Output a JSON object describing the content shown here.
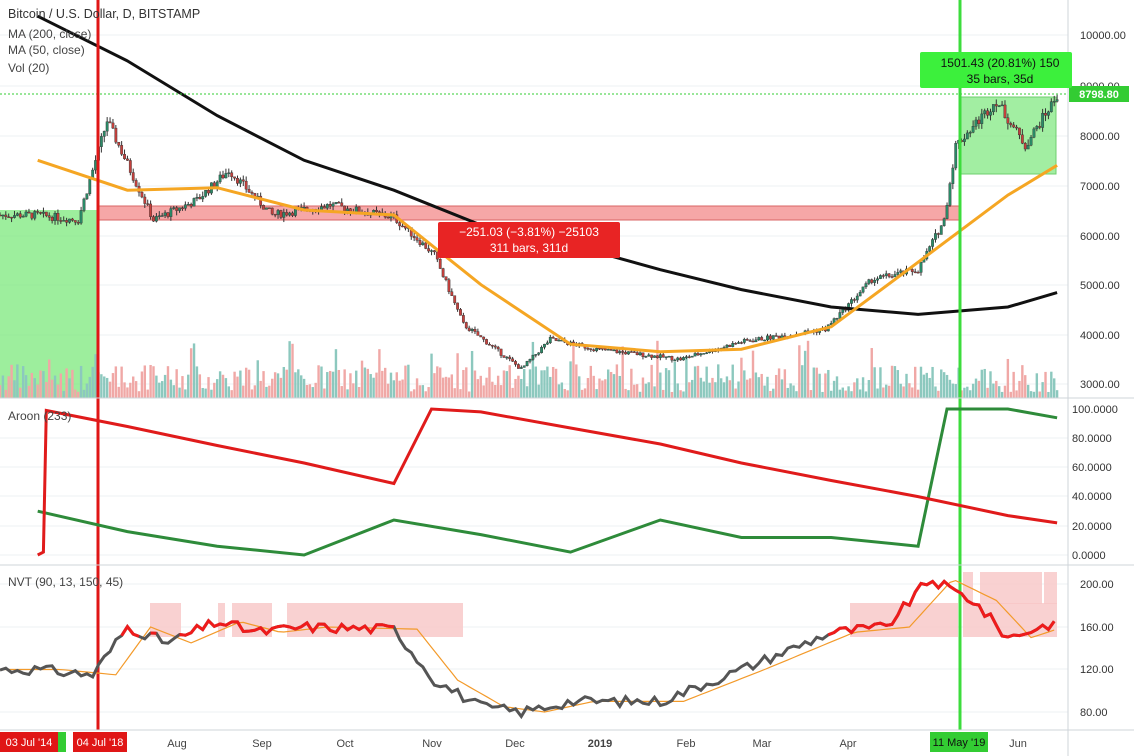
{
  "header": {
    "title": "Bitcoin / U.S. Dollar, D, BITSTAMP",
    "indicators": [
      "MA (200, close)",
      "MA (50, close)",
      "Vol (20)"
    ]
  },
  "colors": {
    "up": "#2a8a67",
    "down": "#c4403c",
    "ma200": "#111111",
    "ma50": "#f5a623",
    "vol_up": "#8cc8be",
    "vol_down": "#f0a8a6",
    "aroon_up": "#2e8b3a",
    "aroon_down": "#e01b1b",
    "nvt_line": "#555555",
    "nvt_high": "#ef1b1b",
    "nvt_signal": "#f39a2a",
    "green_band": "#7ce87c",
    "red_band": "#f48a8a",
    "green_cursor": "#3cdc3c",
    "red_cursor": "#e01616",
    "price_line": "#33cc33"
  },
  "chart_data": [
    {
      "type": "candlestick",
      "title": "Bitcoin / U.S. Dollar, D, BITSTAMP",
      "ylim": [
        2800,
        10500
      ],
      "y_ticks": [
        "10000.00",
        "9000.00",
        "8000.00",
        "7000.00",
        "6000.00",
        "5000.00",
        "4000.00",
        "3000.00"
      ],
      "x_ticks": [
        "Aug",
        "Sep",
        "Oct",
        "Nov",
        "Dec",
        "2019",
        "Feb",
        "Mar",
        "Apr",
        "Jun"
      ],
      "series": [
        {
          "name": "MA (200, close)",
          "x": [
            "2018-07-01",
            "2018-08-01",
            "2018-09-01",
            "2018-10-01",
            "2018-11-01",
            "2018-12-01",
            "2019-01-01",
            "2019-02-01",
            "2019-03-01",
            "2019-04-01",
            "2019-05-01",
            "2019-06-01",
            "2019-06-18"
          ],
          "values": [
            10400,
            9500,
            8400,
            7500,
            6900,
            6200,
            5800,
            5300,
            4900,
            4550,
            4400,
            4550,
            4840
          ]
        },
        {
          "name": "MA (50, close)",
          "x": [
            "2018-07-01",
            "2018-08-01",
            "2018-09-01",
            "2018-10-01",
            "2018-11-01",
            "2018-12-01",
            "2019-01-01",
            "2019-02-01",
            "2019-03-01",
            "2019-04-01",
            "2019-05-01",
            "2019-06-01",
            "2019-06-18"
          ],
          "values": [
            7500,
            6900,
            6950,
            6500,
            6400,
            5000,
            3800,
            3650,
            3700,
            4150,
            5450,
            6800,
            7400
          ]
        },
        {
          "name": "Price",
          "x": [
            "2018-07-01",
            "2018-07-15",
            "2018-07-25",
            "2018-08-10",
            "2018-08-25",
            "2018-09-05",
            "2018-09-20",
            "2018-10-10",
            "2018-11-01",
            "2018-11-15",
            "2018-11-25",
            "2018-12-15",
            "2018-12-25",
            "2019-01-10",
            "2019-02-08",
            "2019-03-01",
            "2019-03-30",
            "2019-04-15",
            "2019-05-01",
            "2019-05-10",
            "2019-05-14",
            "2019-05-28",
            "2019-06-07",
            "2019-06-18"
          ],
          "values": [
            6400,
            6300,
            8300,
            6300,
            6700,
            7300,
            6400,
            6600,
            6350,
            5600,
            4200,
            3300,
            3900,
            3700,
            3500,
            3850,
            4100,
            5100,
            5300,
            6300,
            7800,
            8700,
            7800,
            8798.8
          ]
        }
      ],
      "current_price": "8798.80",
      "measure_up": {
        "line1": "1501.43 (20.81%) 150",
        "line2": "35 bars, 35d"
      },
      "measure_down": {
        "line1": "−251.03 (−3.81%) −25103",
        "line2": "311 bars, 311d"
      }
    },
    {
      "type": "line",
      "title": "Aroon (233)",
      "ylim": [
        0,
        100
      ],
      "y_ticks": [
        "100.0000",
        "80.0000",
        "60.0000",
        "40.0000",
        "20.0000",
        "0.0000"
      ],
      "series": [
        {
          "name": "Aroon Up",
          "x": [
            "2018-07-01",
            "2018-08-01",
            "2018-09-01",
            "2018-10-01",
            "2018-11-01",
            "2018-12-01",
            "2019-01-01",
            "2019-02-01",
            "2019-03-01",
            "2019-04-01",
            "2019-05-01",
            "2019-05-11",
            "2019-06-01",
            "2019-06-18"
          ],
          "values": [
            30,
            16,
            6,
            0,
            24,
            14,
            2,
            24,
            12,
            12,
            6,
            100,
            100,
            94
          ]
        },
        {
          "name": "Aroon Down",
          "x": [
            "2018-07-01",
            "2018-07-03",
            "2018-07-04",
            "2018-08-01",
            "2018-09-01",
            "2018-10-01",
            "2018-11-01",
            "2018-11-14",
            "2018-12-01",
            "2019-01-01",
            "2019-02-01",
            "2019-03-01",
            "2019-04-01",
            "2019-05-01",
            "2019-06-01",
            "2019-06-18"
          ],
          "values": [
            0,
            2,
            99,
            88,
            75,
            63,
            49,
            100,
            98,
            87,
            76,
            63,
            51,
            40,
            27,
            22
          ]
        }
      ]
    },
    {
      "type": "line",
      "title": "NVT (90, 13, 150, 45)",
      "ylim": [
        70,
        210
      ],
      "y_ticks": [
        "200.00",
        "160.00",
        "120.00",
        "80.00"
      ],
      "series": [
        {
          "name": "NVT",
          "x": [
            "2018-07-01",
            "2018-07-20",
            "2018-08-01",
            "2018-08-15",
            "2018-09-01",
            "2018-09-15",
            "2018-10-01",
            "2018-11-01",
            "2018-11-15",
            "2018-12-01",
            "2018-12-15",
            "2019-01-01",
            "2019-02-01",
            "2019-03-01",
            "2019-04-01",
            "2019-04-20",
            "2019-05-05",
            "2019-05-20",
            "2019-06-01",
            "2019-06-18"
          ],
          "values": [
            120,
            115,
            160,
            145,
            165,
            155,
            160,
            158,
            110,
            85,
            80,
            90,
            90,
            120,
            155,
            160,
            205,
            185,
            150,
            165
          ]
        }
      ]
    }
  ],
  "time_axis": {
    "start_label": "03 Jul '14",
    "red_label": "04 Jul '18",
    "green_label": "11 May '19"
  }
}
